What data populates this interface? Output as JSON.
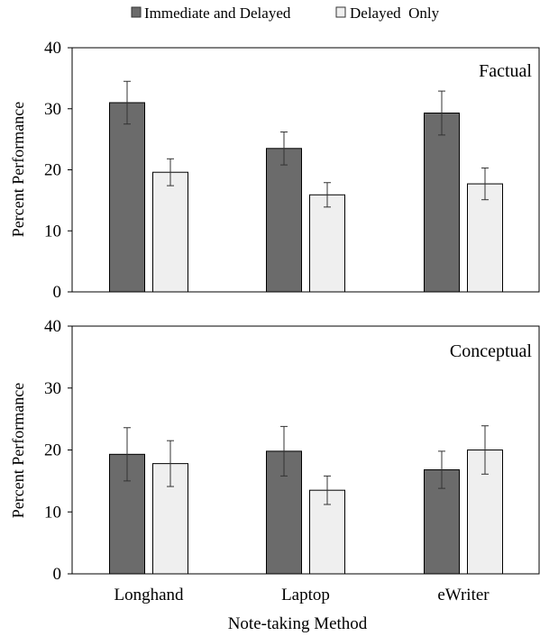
{
  "legend": {
    "items": [
      {
        "label": "Immediate and Delayed",
        "color": "#6b6b6b"
      },
      {
        "label": "Delayed  Only",
        "color": "#efefef"
      }
    ],
    "position": "top-center"
  },
  "xlabel": "Note-taking Method",
  "chart_data": [
    {
      "type": "bar",
      "title": "Factual",
      "ylabel": "Percent Performance",
      "ylim": [
        0,
        40
      ],
      "yticks": [
        0,
        10,
        20,
        30,
        40
      ],
      "categories": [
        "Longhand",
        "Laptop",
        "eWriter"
      ],
      "series": [
        {
          "name": "Immediate and Delayed",
          "color": "#6b6b6b",
          "values": [
            31.0,
            23.5,
            29.3
          ],
          "errors": [
            3.5,
            2.7,
            3.6
          ]
        },
        {
          "name": "Delayed  Only",
          "color": "#efefef",
          "values": [
            19.6,
            15.9,
            17.7
          ],
          "errors": [
            2.2,
            2.0,
            2.6
          ]
        }
      ],
      "grid": false
    },
    {
      "type": "bar",
      "title": "Conceptual",
      "ylabel": "Percent Performance",
      "ylim": [
        0,
        40
      ],
      "yticks": [
        0,
        10,
        20,
        30,
        40
      ],
      "categories": [
        "Longhand",
        "Laptop",
        "eWriter"
      ],
      "series": [
        {
          "name": "Immediate and Delayed",
          "color": "#6b6b6b",
          "values": [
            19.3,
            19.8,
            16.8
          ],
          "errors": [
            4.3,
            4.0,
            3.0
          ]
        },
        {
          "name": "Delayed  Only",
          "color": "#efefef",
          "values": [
            17.8,
            13.5,
            20.0
          ],
          "errors": [
            3.7,
            2.3,
            3.9
          ]
        }
      ],
      "grid": false
    }
  ]
}
